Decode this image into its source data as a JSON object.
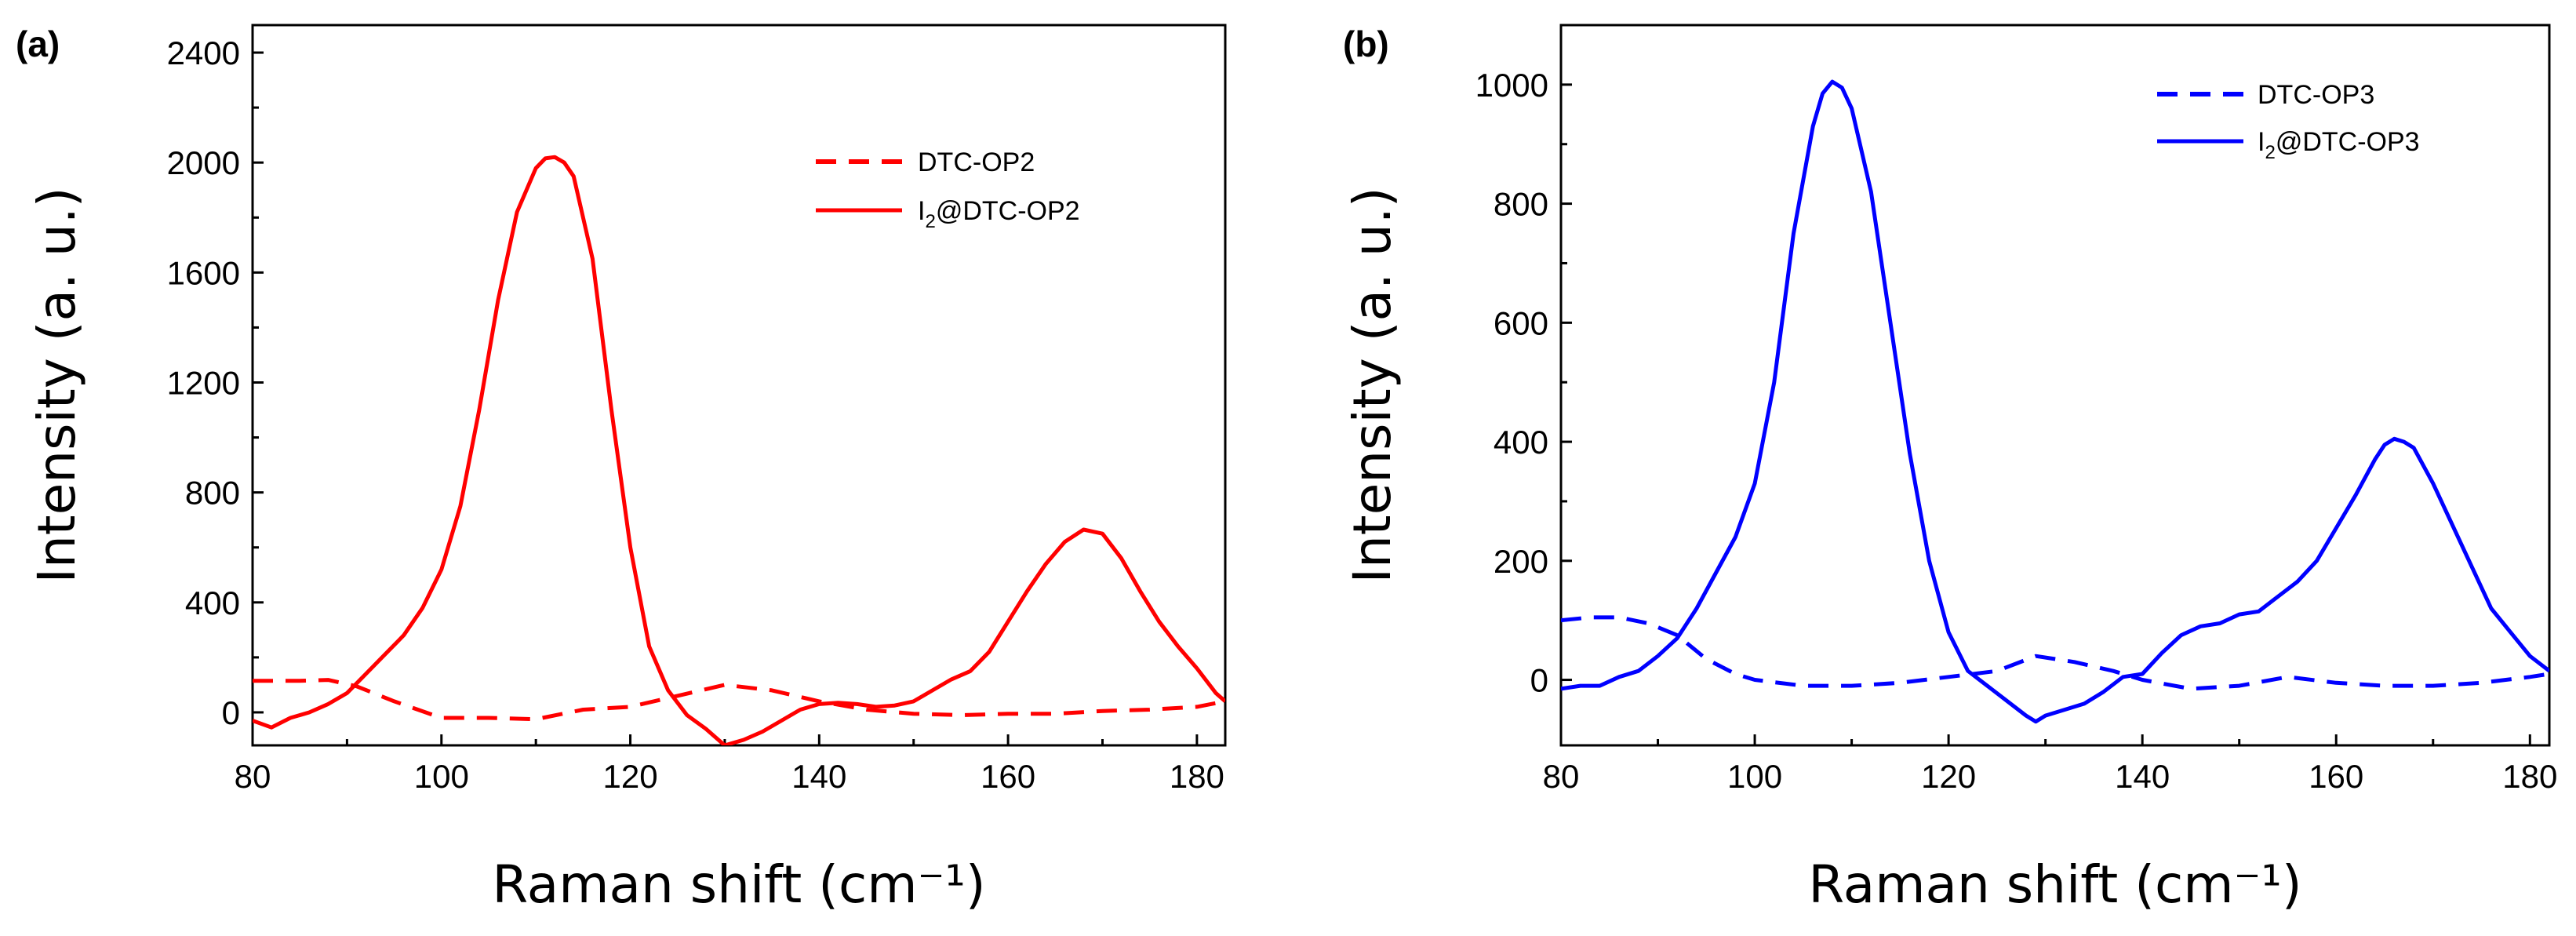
{
  "chart_data": [
    {
      "panel": "(a)",
      "type": "line",
      "xlabel": "Raman shift (cm⁻¹)",
      "ylabel": "Intensity (a. u.)",
      "xlim": [
        80,
        183
      ],
      "ylim": [
        -120,
        2500
      ],
      "xticks": [
        "80",
        "100",
        "120",
        "140",
        "160",
        "180"
      ],
      "yticks": [
        "0",
        "400",
        "800",
        "1200",
        "1600",
        "2000",
        "2400"
      ],
      "color": "#ff0000",
      "legend_position": "top-right",
      "series": [
        {
          "name": "DTC-OP2",
          "style": "dashed",
          "x": [
            80,
            85,
            88,
            91,
            95,
            100,
            105,
            110,
            115,
            120,
            125,
            130,
            135,
            140,
            145,
            150,
            155,
            160,
            165,
            170,
            175,
            180,
            183
          ],
          "y": [
            115,
            115,
            118,
            95,
            40,
            -20,
            -20,
            -25,
            10,
            20,
            60,
            100,
            80,
            40,
            10,
            -5,
            -10,
            -5,
            -5,
            5,
            10,
            20,
            40
          ]
        },
        {
          "name": "I2@DTC-OP2",
          "legend_main": "I",
          "legend_sub": "2",
          "legend_rest": "@DTC-OP2",
          "style": "solid",
          "x": [
            80,
            82,
            84,
            86,
            88,
            90,
            92,
            94,
            96,
            98,
            100,
            102,
            104,
            106,
            108,
            110,
            111,
            112,
            113,
            114,
            116,
            118,
            120,
            122,
            124,
            126,
            128,
            130,
            132,
            134,
            136,
            138,
            140,
            142,
            144,
            146,
            148,
            150,
            152,
            154,
            156,
            158,
            160,
            162,
            164,
            166,
            168,
            170,
            172,
            174,
            176,
            178,
            180,
            182,
            183
          ],
          "y": [
            -30,
            -55,
            -20,
            0,
            30,
            70,
            140,
            210,
            280,
            380,
            520,
            750,
            1100,
            1500,
            1820,
            1980,
            2015,
            2020,
            2000,
            1950,
            1650,
            1100,
            600,
            240,
            80,
            -10,
            -60,
            -120,
            -100,
            -70,
            -30,
            10,
            30,
            35,
            30,
            20,
            25,
            40,
            80,
            120,
            150,
            220,
            330,
            440,
            540,
            620,
            665,
            650,
            560,
            440,
            330,
            240,
            160,
            70,
            40
          ]
        }
      ]
    },
    {
      "panel": "(b)",
      "type": "line",
      "xlabel": "Raman shift (cm⁻¹)",
      "ylabel": "Intensity (a. u.)",
      "xlim": [
        80,
        182
      ],
      "ylim": [
        -110,
        1100
      ],
      "xticks": [
        "80",
        "100",
        "120",
        "140",
        "160",
        "180"
      ],
      "yticks": [
        "0",
        "200",
        "400",
        "600",
        "800",
        "1000"
      ],
      "color": "#0000ff",
      "legend_position": "top-right",
      "series": [
        {
          "name": "DTC-OP3",
          "style": "dashed",
          "x": [
            80,
            83,
            86,
            89,
            92,
            95,
            98,
            100,
            105,
            110,
            115,
            120,
            125,
            129,
            133,
            137,
            140,
            145,
            150,
            155,
            160,
            165,
            170,
            175,
            180,
            182
          ],
          "y": [
            100,
            105,
            105,
            95,
            75,
            35,
            10,
            0,
            -10,
            -10,
            -5,
            5,
            15,
            40,
            30,
            15,
            0,
            -15,
            -10,
            5,
            -5,
            -10,
            -10,
            -5,
            5,
            10
          ]
        },
        {
          "name": "I2@DTC-OP3",
          "legend_main": "I",
          "legend_sub": "2",
          "legend_rest": "@DTC-OP3",
          "style": "solid",
          "x": [
            80,
            82,
            84,
            86,
            88,
            90,
            92,
            94,
            96,
            98,
            100,
            102,
            104,
            106,
            107,
            108,
            109,
            110,
            112,
            114,
            116,
            118,
            120,
            122,
            124,
            126,
            128,
            129,
            130,
            132,
            134,
            136,
            138,
            140,
            142,
            144,
            146,
            148,
            150,
            152,
            154,
            156,
            158,
            160,
            162,
            164,
            165,
            166,
            167,
            168,
            170,
            172,
            174,
            176,
            178,
            180,
            182
          ],
          "y": [
            -15,
            -10,
            -10,
            5,
            15,
            40,
            70,
            120,
            180,
            240,
            330,
            500,
            750,
            930,
            985,
            1005,
            995,
            960,
            820,
            600,
            380,
            200,
            80,
            15,
            -10,
            -35,
            -60,
            -70,
            -60,
            -50,
            -40,
            -20,
            5,
            10,
            45,
            75,
            90,
            95,
            110,
            115,
            140,
            165,
            200,
            255,
            310,
            370,
            395,
            405,
            400,
            390,
            330,
            260,
            190,
            120,
            80,
            40,
            15
          ]
        }
      ]
    }
  ]
}
